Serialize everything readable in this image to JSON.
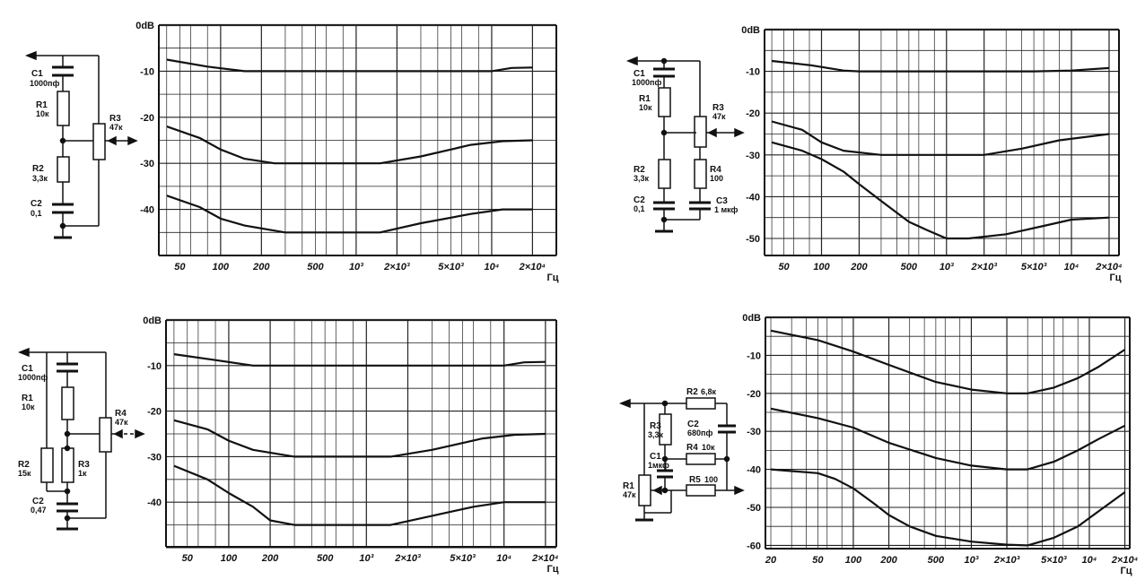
{
  "panels": [
    {
      "id": "p1",
      "y_tick_labels": [
        "0dB",
        "-10",
        "-20",
        "-30",
        "-40"
      ],
      "x_tick_labels": [
        "50",
        "100",
        "200",
        "500",
        "10³",
        "2×10³",
        "5×10³",
        "10⁴",
        "2×10⁴"
      ],
      "x_unit": "Гц",
      "curves_db": [
        [
          [
            40,
            -7.5
          ],
          [
            80,
            -9
          ],
          [
            150,
            -10
          ],
          [
            500,
            -10
          ],
          [
            3000,
            -10
          ],
          [
            10000,
            -10
          ],
          [
            14000,
            -9.3
          ],
          [
            20000,
            -9.2
          ]
        ],
        [
          [
            40,
            -22
          ],
          [
            70,
            -24.5
          ],
          [
            100,
            -27
          ],
          [
            150,
            -29
          ],
          [
            250,
            -30
          ],
          [
            1500,
            -30
          ],
          [
            3000,
            -28.5
          ],
          [
            7000,
            -26
          ],
          [
            12000,
            -25.2
          ],
          [
            20000,
            -25
          ]
        ],
        [
          [
            40,
            -37
          ],
          [
            70,
            -39.5
          ],
          [
            100,
            -42
          ],
          [
            150,
            -43.5
          ],
          [
            300,
            -45
          ],
          [
            1500,
            -45
          ],
          [
            3000,
            -43
          ],
          [
            7000,
            -41
          ],
          [
            12000,
            -40
          ],
          [
            20000,
            -40
          ]
        ]
      ],
      "schematic": {
        "components": [
          {
            "ref": "C1",
            "value": "1000пф"
          },
          {
            "ref": "R1",
            "value": "10к"
          },
          {
            "ref": "R2",
            "value": "3,3к"
          },
          {
            "ref": "C2",
            "value": "0,1"
          },
          {
            "ref": "R3",
            "value": "47к"
          }
        ]
      }
    },
    {
      "id": "p2",
      "y_tick_labels": [
        "0dB",
        "-10",
        "-20",
        "-30",
        "-40",
        "-50"
      ],
      "x_tick_labels": [
        "50",
        "100",
        "200",
        "500",
        "10³",
        "2×10³",
        "5×10³",
        "10⁴",
        "2×10⁴"
      ],
      "x_unit": "Гц",
      "curves_db": [
        [
          [
            40,
            -7.5
          ],
          [
            80,
            -8.5
          ],
          [
            150,
            -9.8
          ],
          [
            200,
            -10
          ],
          [
            5000,
            -10
          ],
          [
            10000,
            -9.8
          ],
          [
            20000,
            -9.2
          ]
        ],
        [
          [
            40,
            -22
          ],
          [
            70,
            -24
          ],
          [
            100,
            -27
          ],
          [
            150,
            -29
          ],
          [
            300,
            -30
          ],
          [
            2000,
            -30
          ],
          [
            4000,
            -28.5
          ],
          [
            8000,
            -26.5
          ],
          [
            20000,
            -25
          ]
        ],
        [
          [
            40,
            -27
          ],
          [
            70,
            -29
          ],
          [
            100,
            -31
          ],
          [
            150,
            -34
          ],
          [
            200,
            -37
          ],
          [
            300,
            -41
          ],
          [
            500,
            -46
          ],
          [
            700,
            -48
          ],
          [
            1000,
            -50
          ],
          [
            1500,
            -50
          ],
          [
            3000,
            -49
          ],
          [
            6000,
            -47
          ],
          [
            10000,
            -45.5
          ],
          [
            20000,
            -45
          ]
        ]
      ],
      "schematic": {
        "components": [
          {
            "ref": "C1",
            "value": "1000пф"
          },
          {
            "ref": "R1",
            "value": "10к"
          },
          {
            "ref": "R2",
            "value": "3,3к"
          },
          {
            "ref": "C2",
            "value": "0,1"
          },
          {
            "ref": "R3",
            "value": "47к"
          },
          {
            "ref": "R4",
            "value": "100"
          },
          {
            "ref": "C3",
            "value": "1 мкф"
          }
        ]
      }
    },
    {
      "id": "p3",
      "y_tick_labels": [
        "0dB",
        "-10",
        "-20",
        "-30",
        "-40"
      ],
      "x_tick_labels": [
        "50",
        "100",
        "200",
        "500",
        "10³",
        "2×10³",
        "5×10³",
        "10⁴",
        "2×10⁴"
      ],
      "x_unit": "Гц",
      "curves_db": [
        [
          [
            40,
            -7.5
          ],
          [
            80,
            -8.8
          ],
          [
            150,
            -10
          ],
          [
            500,
            -10
          ],
          [
            3000,
            -10
          ],
          [
            10000,
            -10
          ],
          [
            14000,
            -9.3
          ],
          [
            20000,
            -9.2
          ]
        ],
        [
          [
            40,
            -22
          ],
          [
            70,
            -24
          ],
          [
            100,
            -26.5
          ],
          [
            150,
            -28.5
          ],
          [
            300,
            -30
          ],
          [
            1500,
            -30
          ],
          [
            3000,
            -28.5
          ],
          [
            7000,
            -26
          ],
          [
            12000,
            -25.2
          ],
          [
            20000,
            -25
          ]
        ],
        [
          [
            40,
            -32
          ],
          [
            70,
            -35
          ],
          [
            100,
            -38
          ],
          [
            150,
            -41
          ],
          [
            200,
            -44
          ],
          [
            300,
            -45
          ],
          [
            1500,
            -45
          ],
          [
            3000,
            -43
          ],
          [
            6000,
            -41
          ],
          [
            10000,
            -40
          ],
          [
            20000,
            -40
          ]
        ]
      ],
      "schematic": {
        "components": [
          {
            "ref": "C1",
            "value": "1000пф"
          },
          {
            "ref": "R1",
            "value": "10к"
          },
          {
            "ref": "R2",
            "value": "15к"
          },
          {
            "ref": "R3",
            "value": "1к"
          },
          {
            "ref": "C2",
            "value": "0,47"
          },
          {
            "ref": "R4",
            "value": "47к"
          }
        ]
      }
    },
    {
      "id": "p4",
      "y_tick_labels": [
        "0dB",
        "-10",
        "-20",
        "-30",
        "-40",
        "-50",
        "-60"
      ],
      "x_tick_labels": [
        "20",
        "50",
        "100",
        "200",
        "500",
        "10³",
        "2×10³",
        "5×10³",
        "10⁴",
        "2×10⁴"
      ],
      "x_unit": "Гц",
      "curves_db": [
        [
          [
            20,
            -3.5
          ],
          [
            50,
            -6
          ],
          [
            100,
            -9
          ],
          [
            200,
            -12.5
          ],
          [
            500,
            -17
          ],
          [
            1000,
            -19
          ],
          [
            2000,
            -20
          ],
          [
            3000,
            -20
          ],
          [
            5000,
            -18.5
          ],
          [
            8000,
            -16
          ],
          [
            12000,
            -13
          ],
          [
            20000,
            -8.5
          ]
        ],
        [
          [
            20,
            -24
          ],
          [
            50,
            -26.5
          ],
          [
            100,
            -29
          ],
          [
            200,
            -33
          ],
          [
            500,
            -37
          ],
          [
            1000,
            -39
          ],
          [
            2000,
            -40
          ],
          [
            3000,
            -40
          ],
          [
            5000,
            -38
          ],
          [
            8000,
            -35
          ],
          [
            12000,
            -32
          ],
          [
            20000,
            -28.5
          ]
        ],
        [
          [
            20,
            -40
          ],
          [
            50,
            -41
          ],
          [
            70,
            -42.5
          ],
          [
            100,
            -45
          ],
          [
            150,
            -49
          ],
          [
            200,
            -52
          ],
          [
            300,
            -55
          ],
          [
            500,
            -57.5
          ],
          [
            1000,
            -59
          ],
          [
            2000,
            -59.8
          ],
          [
            3000,
            -60
          ],
          [
            5000,
            -58
          ],
          [
            8000,
            -55
          ],
          [
            12000,
            -51
          ],
          [
            20000,
            -46
          ]
        ]
      ],
      "schematic": {
        "components": [
          {
            "ref": "R2",
            "value": "6,8к"
          },
          {
            "ref": "R3",
            "value": "3,3к"
          },
          {
            "ref": "C2",
            "value": "680пф"
          },
          {
            "ref": "R4",
            "value": "10к"
          },
          {
            "ref": "C1",
            "value": "1мкф"
          },
          {
            "ref": "R5",
            "value": "100"
          },
          {
            "ref": "R1",
            "value": "47к"
          }
        ]
      }
    }
  ]
}
